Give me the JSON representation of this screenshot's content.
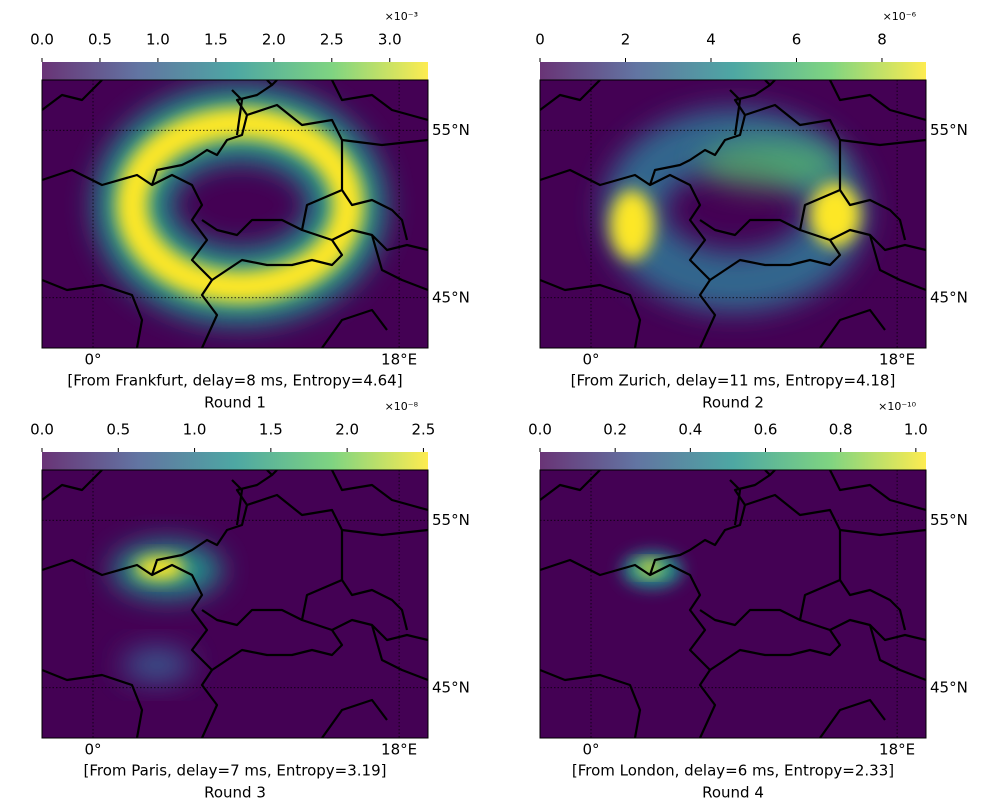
{
  "chart_data": [
    {
      "type": "heatmap",
      "title": "Round 1",
      "xlabel": "[From Frankfurt, delay=8 ms, Entropy=4.64]",
      "colormap": "viridis",
      "grid": true,
      "xlim": [
        -3,
        19.7
      ],
      "ylim": [
        42,
        58
      ],
      "xticks": [
        {
          "value": 0,
          "label": "0°"
        },
        {
          "value": 18,
          "label": "18°E"
        }
      ],
      "yticks": [
        {
          "value": 45,
          "label": "45°N"
        },
        {
          "value": 55,
          "label": "55°N"
        }
      ],
      "colorbar": {
        "clim": [
          0,
          3.33
        ],
        "offset_label": "×10⁻³",
        "ticks": [
          {
            "value": 0,
            "label": "0.0"
          },
          0.5,
          {
            "value": 1,
            "label": "1.0"
          },
          1.5,
          {
            "value": 2,
            "label": "2.0"
          },
          2.5,
          {
            "value": 3,
            "label": "3.0"
          }
        ]
      }
    },
    {
      "type": "heatmap",
      "title": "Round 2",
      "xlabel": "[From Zurich, delay=11 ms, Entropy=4.18]",
      "colormap": "viridis",
      "grid": true,
      "xlim": [
        -3,
        19.7
      ],
      "ylim": [
        42,
        58
      ],
      "xticks": [
        {
          "value": 0,
          "label": "0°"
        },
        {
          "value": 18,
          "label": "18°E"
        }
      ],
      "yticks": [
        {
          "value": 45,
          "label": "45°N"
        },
        {
          "value": 55,
          "label": "55°N"
        }
      ],
      "colorbar": {
        "clim": [
          0,
          9.03
        ],
        "offset_label": "×10⁻⁶",
        "ticks": [
          0,
          2,
          4,
          6,
          8
        ]
      }
    },
    {
      "type": "heatmap",
      "title": "Round 3",
      "xlabel": "[From Paris, delay=7 ms, Entropy=3.19]",
      "colormap": "viridis",
      "grid": true,
      "xlim": [
        -3,
        19.7
      ],
      "ylim": [
        42,
        58
      ],
      "xticks": [
        {
          "value": 0,
          "label": "0°"
        },
        {
          "value": 18,
          "label": "18°E"
        }
      ],
      "yticks": [
        {
          "value": 45,
          "label": "45°N"
        },
        {
          "value": 55,
          "label": "55°N"
        }
      ],
      "colorbar": {
        "clim": [
          0,
          2.53
        ],
        "offset_label": "×10⁻⁸",
        "ticks": [
          {
            "value": 0,
            "label": "0.0"
          },
          0.5,
          {
            "value": 1,
            "label": "1.0"
          },
          1.5,
          {
            "value": 2,
            "label": "2.0"
          },
          2.5
        ]
      }
    },
    {
      "type": "heatmap",
      "title": "Round 4",
      "xlabel": "[From London, delay=6 ms, Entropy=2.33]",
      "colormap": "viridis",
      "grid": true,
      "xlim": [
        -3,
        19.7
      ],
      "ylim": [
        42,
        58
      ],
      "xticks": [
        {
          "value": 0,
          "label": "0°"
        },
        {
          "value": 18,
          "label": "18°E"
        }
      ],
      "yticks": [
        {
          "value": 45,
          "label": "45°N"
        },
        {
          "value": 55,
          "label": "55°N"
        }
      ],
      "colorbar": {
        "clim": [
          0,
          1.027
        ],
        "offset_label": "×10⁻¹⁰",
        "ticks": [
          {
            "value": 0,
            "label": "0.0"
          },
          0.2,
          0.4,
          0.6,
          0.8,
          {
            "value": 1,
            "label": "1.0"
          }
        ]
      }
    }
  ]
}
